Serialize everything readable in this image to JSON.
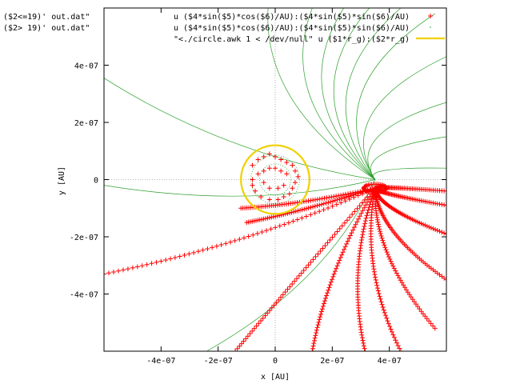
{
  "chart_data": {
    "type": "scatter",
    "title": "",
    "xlabel": "x [AU]",
    "ylabel": "y [AU]",
    "xlim": [
      -6e-07,
      6e-07
    ],
    "ylim": [
      -6e-07,
      6e-07
    ],
    "xticks": [
      -4e-07,
      -2e-07,
      0,
      2e-07,
      4e-07
    ],
    "yticks": [
      -4e-07,
      -2e-07,
      0,
      2e-07,
      4e-07
    ],
    "xtick_labels": [
      "-4e-07",
      "-2e-07",
      "0",
      "2e-07",
      "4e-07"
    ],
    "ytick_labels": [
      "-4e-07",
      "-2e-07",
      "0",
      "2e-07",
      "4e-07"
    ],
    "grid": false,
    "legend_placement": "top-right",
    "extra_labels": [
      "($2<=19)' out.dat\"",
      "($2> 19)' out.dat\""
    ],
    "colors": {
      "red": "#ff0000",
      "green": "#2ca02c",
      "gold": "#f0d000"
    },
    "series": [
      {
        "name": "u ($4*sin($5)*cos($6)/AU):($4*sin($5)*sin($6)/AU)",
        "marker": "plus",
        "color": "#ff0000",
        "source_x": 3.5e-07,
        "source_y": -3e-08,
        "far_points": [
          [
            -6e-07,
            -3.3e-07
          ],
          [
            -1.4e-07,
            -6e-07
          ],
          [
            1.3e-07,
            -6e-07
          ],
          [
            3.15e-07,
            -6e-07
          ],
          [
            4.4e-07,
            -6e-07
          ],
          [
            5.6e-07,
            -5.2e-07
          ],
          [
            6e-07,
            -3.5e-07
          ],
          [
            6e-07,
            -1.9e-07
          ],
          [
            6e-07,
            -9e-08
          ],
          [
            6e-07,
            -4e-08
          ],
          [
            -1.2e-07,
            -1e-07
          ],
          [
            -1e-07,
            -1.5e-07
          ]
        ],
        "inner_points": [
          [
            -8e-08,
            5e-08
          ],
          [
            -6e-08,
            7e-08
          ],
          [
            -4e-08,
            8e-08
          ],
          [
            -2e-08,
            9e-08
          ],
          [
            0,
            8e-08
          ],
          [
            2e-08,
            7e-08
          ],
          [
            4e-08,
            6e-08
          ],
          [
            6e-08,
            5e-08
          ],
          [
            7e-08,
            3e-08
          ],
          [
            8e-08,
            1e-08
          ],
          [
            7e-08,
            -1e-08
          ],
          [
            6e-08,
            -3e-08
          ],
          [
            5e-08,
            -5e-08
          ],
          [
            3e-08,
            -6e-08
          ],
          [
            1e-08,
            -7e-08
          ],
          [
            -2e-08,
            -7e-08
          ],
          [
            -5e-08,
            -6e-08
          ],
          [
            -7e-08,
            -4e-08
          ],
          [
            -8e-08,
            -2e-08
          ],
          [
            -8e-08,
            0
          ],
          [
            -6e-08,
            2e-08
          ],
          [
            -4e-08,
            3e-08
          ],
          [
            -2e-08,
            4e-08
          ],
          [
            0,
            4e-08
          ],
          [
            2e-08,
            3e-08
          ],
          [
            4e-08,
            2e-08
          ],
          [
            3e-08,
            -2e-08
          ],
          [
            1e-08,
            -3e-08
          ],
          [
            -2e-08,
            -3e-08
          ],
          [
            -4e-08,
            -1e-08
          ]
        ]
      },
      {
        "name": "u ($4*sin($5)*cos($6)/AU):($4*sin($5)*sin($6)/AU)",
        "marker": "dot",
        "color": "#2ca02c",
        "source_x": 3.5e-07,
        "source_y": 0,
        "far_points": [
          [
            -6e-07,
            -2e-08
          ],
          [
            -6e-07,
            3.55e-07
          ],
          [
            -2.4e-07,
            -6e-07
          ],
          [
            -2.5e-08,
            6e-07
          ],
          [
            1.3e-07,
            6e-07
          ],
          [
            2.4e-07,
            6e-07
          ],
          [
            3.3e-07,
            6e-07
          ],
          [
            4.4e-07,
            6e-07
          ],
          [
            5.6e-07,
            5.8e-07
          ],
          [
            6e-07,
            4.3e-07
          ],
          [
            6e-07,
            2.7e-07
          ],
          [
            6e-07,
            1.5e-07
          ],
          [
            6e-07,
            4e-08
          ]
        ]
      },
      {
        "name": "\"<./circle.awk 1 < /dev/null\" u ($1*r_g):($2*r_g)",
        "marker": "line",
        "color": "#f0d000",
        "center": [
          0,
          0
        ],
        "radius": 1.2e-07
      }
    ]
  }
}
